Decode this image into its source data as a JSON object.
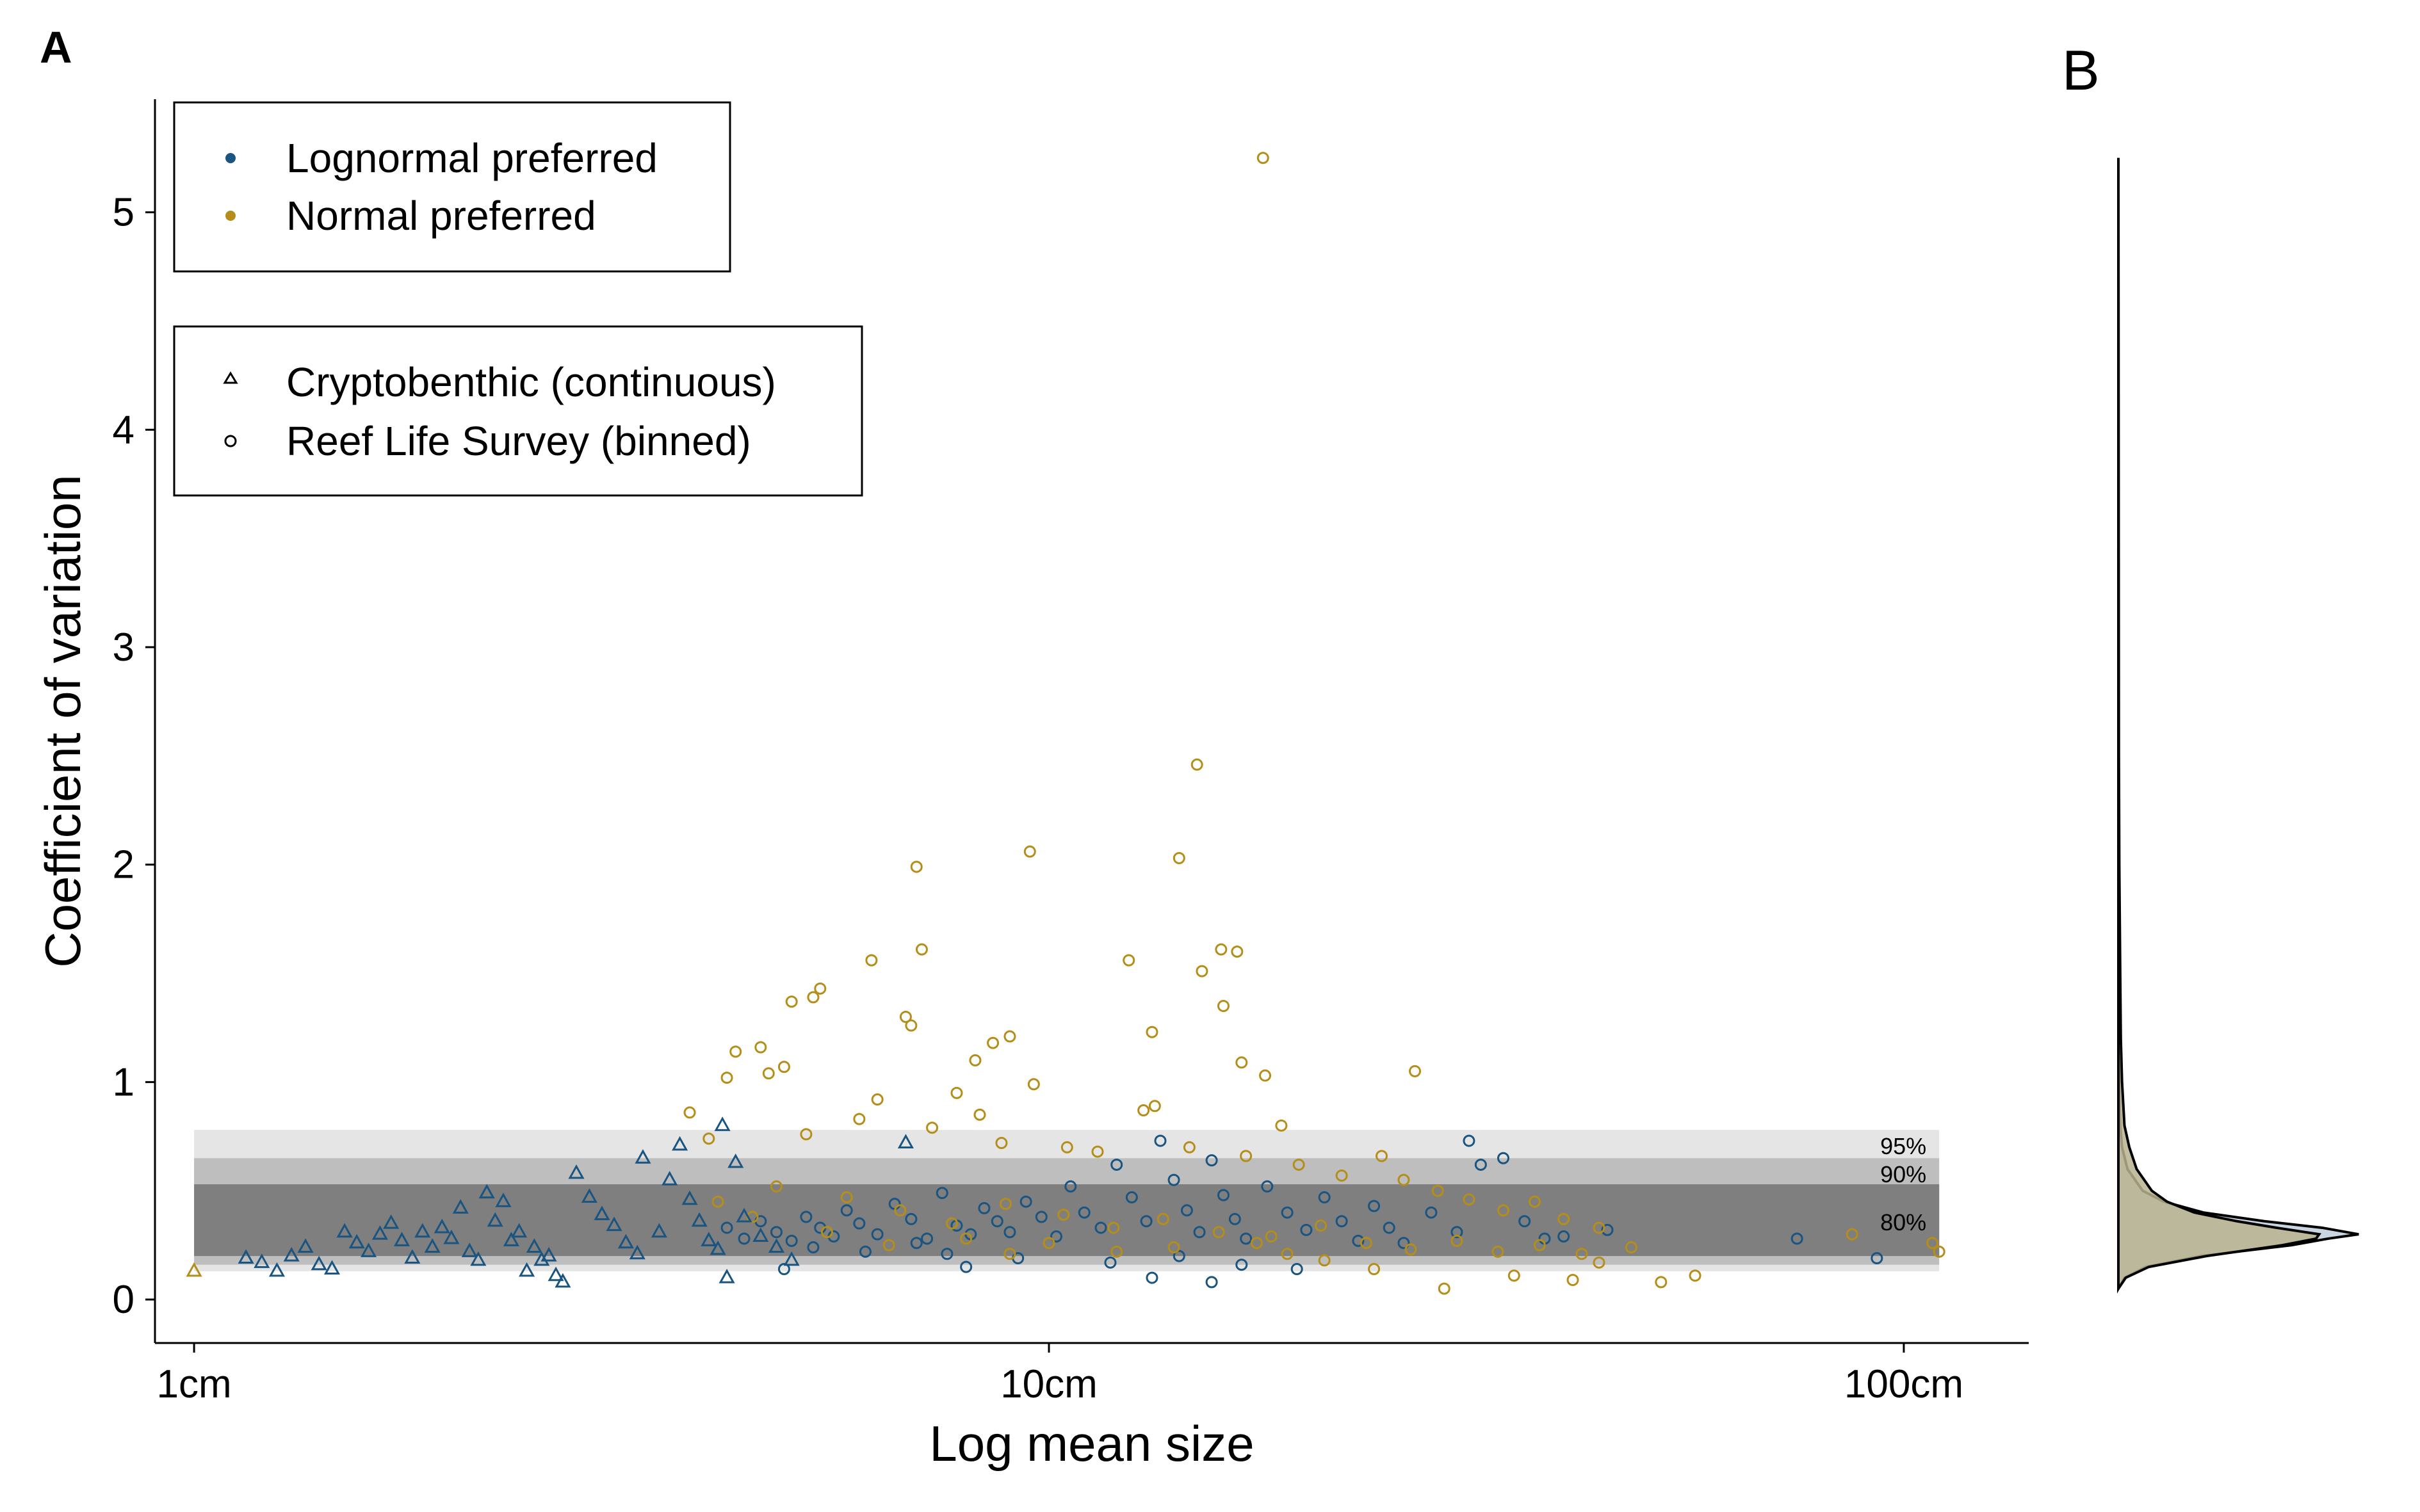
{
  "panel_labels": {
    "a": "A",
    "b": "B"
  },
  "colors": {
    "lognormal": "#1a5480",
    "normal": "#b58e1a",
    "band_95": "#e5e5e5",
    "band_90": "#bebebe",
    "band_80": "#7f7f7f",
    "density_lognormal_fill": "#c3d0de",
    "density_normal_fill": "#b9b38f"
  },
  "legend_color": {
    "items": [
      {
        "label": "Lognormal preferred",
        "marker": "filled-dot",
        "color": "#1a5480"
      },
      {
        "label": "Normal preferred",
        "marker": "filled-dot",
        "color": "#b58e1a"
      }
    ]
  },
  "legend_shape": {
    "items": [
      {
        "label": "Cryptobenthic (continuous)",
        "marker": "open-triangle"
      },
      {
        "label": "Reef Life Survey (binned)",
        "marker": "open-circle"
      }
    ]
  },
  "chart_data": [
    {
      "panel": "A",
      "type": "scatter",
      "xlabel": "Log mean size",
      "ylabel": "Coefficient of variation",
      "x_scale": "log10",
      "x_unit": "cm",
      "xlim": [
        0.9,
        140
      ],
      "ylim": [
        -0.2,
        5.52
      ],
      "x_ticks": [
        1,
        10,
        100
      ],
      "x_tick_labels": [
        "1cm",
        "10cm",
        "100cm"
      ],
      "y_ticks": [
        0,
        1,
        2,
        3,
        4,
        5
      ],
      "y_tick_labels": [
        "0",
        "1",
        "2",
        "3",
        "4",
        "5"
      ],
      "grid": false,
      "bands": [
        {
          "label": "95%",
          "y_low": 0.13,
          "y_high": 0.78
        },
        {
          "label": "90%",
          "y_low": 0.16,
          "y_high": 0.65
        },
        {
          "label": "80%",
          "y_low": 0.2,
          "y_high": 0.53
        }
      ],
      "band_x_range": [
        1,
        110
      ],
      "series": [
        {
          "name": "Lognormal preferred",
          "marker": "open-circle",
          "group": "Reef Life Survey (binned)",
          "points": [
            [
              4.2,
              0.33
            ],
            [
              4.4,
              0.28
            ],
            [
              4.6,
              0.36
            ],
            [
              4.8,
              0.31
            ],
            [
              5.0,
              0.27
            ],
            [
              5.2,
              0.38
            ],
            [
              5.4,
              0.33
            ],
            [
              5.6,
              0.29
            ],
            [
              5.8,
              0.41
            ],
            [
              6.0,
              0.35
            ],
            [
              6.3,
              0.3
            ],
            [
              6.6,
              0.44
            ],
            [
              6.9,
              0.37
            ],
            [
              7.2,
              0.28
            ],
            [
              7.5,
              0.49
            ],
            [
              7.8,
              0.34
            ],
            [
              8.1,
              0.3
            ],
            [
              8.4,
              0.42
            ],
            [
              8.7,
              0.36
            ],
            [
              9.0,
              0.31
            ],
            [
              9.4,
              0.45
            ],
            [
              9.8,
              0.38
            ],
            [
              10.2,
              0.29
            ],
            [
              10.6,
              0.52
            ],
            [
              11.0,
              0.4
            ],
            [
              11.5,
              0.33
            ],
            [
              12.0,
              0.62
            ],
            [
              12.5,
              0.47
            ],
            [
              13.0,
              0.36
            ],
            [
              13.5,
              0.73
            ],
            [
              14.0,
              0.55
            ],
            [
              14.5,
              0.41
            ],
            [
              15.0,
              0.31
            ],
            [
              15.5,
              0.64
            ],
            [
              16.0,
              0.48
            ],
            [
              16.5,
              0.37
            ],
            [
              17.0,
              0.28
            ],
            [
              18.0,
              0.52
            ],
            [
              19.0,
              0.4
            ],
            [
              20.0,
              0.32
            ],
            [
              21.0,
              0.47
            ],
            [
              22.0,
              0.36
            ],
            [
              23.0,
              0.27
            ],
            [
              24.0,
              0.43
            ],
            [
              25.0,
              0.33
            ],
            [
              26.0,
              0.26
            ],
            [
              28.0,
              0.4
            ],
            [
              30.0,
              0.31
            ],
            [
              31.0,
              0.73
            ],
            [
              32.0,
              0.62
            ],
            [
              34.0,
              0.65
            ],
            [
              36.0,
              0.36
            ],
            [
              38.0,
              0.28
            ],
            [
              40.0,
              0.29
            ],
            [
              45.0,
              0.32
            ],
            [
              75.0,
              0.28
            ],
            [
              93.0,
              0.19
            ],
            [
              13.2,
              0.1
            ],
            [
              15.5,
              0.08
            ],
            [
              4.9,
              0.14
            ],
            [
              8.0,
              0.15
            ],
            [
              9.2,
              0.19
            ],
            [
              11.8,
              0.17
            ],
            [
              14.2,
              0.2
            ],
            [
              16.8,
              0.16
            ],
            [
              19.5,
              0.14
            ],
            [
              5.3,
              0.24
            ],
            [
              6.1,
              0.22
            ],
            [
              7.0,
              0.26
            ],
            [
              7.6,
              0.21
            ]
          ]
        },
        {
          "name": "Normal preferred",
          "marker": "open-circle",
          "group": "Reef Life Survey (binned)",
          "points": [
            [
              17.8,
              5.25
            ],
            [
              14.9,
              2.46
            ],
            [
              14.2,
              2.03
            ],
            [
              9.5,
              2.06
            ],
            [
              7.0,
              1.99
            ],
            [
              6.2,
              1.56
            ],
            [
              7.1,
              1.61
            ],
            [
              15.9,
              1.61
            ],
            [
              16.6,
              1.6
            ],
            [
              12.4,
              1.56
            ],
            [
              15.1,
              1.51
            ],
            [
              16.0,
              1.35
            ],
            [
              5.4,
              1.43
            ],
            [
              5.3,
              1.39
            ],
            [
              5.0,
              1.37
            ],
            [
              6.8,
              1.3
            ],
            [
              6.9,
              1.26
            ],
            [
              13.2,
              1.23
            ],
            [
              9.0,
              1.21
            ],
            [
              8.6,
              1.18
            ],
            [
              4.6,
              1.16
            ],
            [
              4.3,
              1.14
            ],
            [
              16.8,
              1.09
            ],
            [
              4.9,
              1.07
            ],
            [
              4.7,
              1.04
            ],
            [
              8.2,
              1.1
            ],
            [
              26.8,
              1.05
            ],
            [
              17.9,
              1.03
            ],
            [
              4.2,
              1.02
            ],
            [
              7.8,
              0.95
            ],
            [
              9.6,
              0.99
            ],
            [
              12.9,
              0.87
            ],
            [
              13.3,
              0.89
            ],
            [
              8.3,
              0.85
            ],
            [
              6.3,
              0.92
            ],
            [
              18.7,
              0.8
            ],
            [
              3.8,
              0.86
            ],
            [
              4.0,
              0.74
            ],
            [
              5.2,
              0.76
            ],
            [
              6.0,
              0.83
            ],
            [
              7.3,
              0.79
            ],
            [
              8.8,
              0.72
            ],
            [
              10.5,
              0.7
            ],
            [
              11.4,
              0.68
            ],
            [
              14.6,
              0.7
            ],
            [
              17.0,
              0.66
            ],
            [
              19.6,
              0.62
            ],
            [
              22.0,
              0.57
            ],
            [
              24.5,
              0.66
            ],
            [
              26.0,
              0.55
            ],
            [
              28.5,
              0.5
            ],
            [
              31.0,
              0.46
            ],
            [
              34.0,
              0.41
            ],
            [
              37.0,
              0.45
            ],
            [
              40.0,
              0.37
            ],
            [
              44.0,
              0.33
            ],
            [
              48.0,
              0.24
            ],
            [
              52.0,
              0.08
            ],
            [
              57.0,
              0.11
            ],
            [
              44.0,
              0.17
            ],
            [
              41.0,
              0.09
            ],
            [
              35.0,
              0.11
            ],
            [
              29.0,
              0.05
            ],
            [
              24.0,
              0.14
            ],
            [
              21.0,
              0.18
            ],
            [
              19.0,
              0.21
            ],
            [
              17.5,
              0.26
            ],
            [
              14.0,
              0.24
            ],
            [
              12.0,
              0.22
            ],
            [
              10.0,
              0.26
            ],
            [
              9.0,
              0.21
            ],
            [
              8.0,
              0.28
            ],
            [
              6.5,
              0.25
            ],
            [
              5.5,
              0.31
            ],
            [
              4.5,
              0.38
            ],
            [
              4.1,
              0.45
            ],
            [
              4.8,
              0.52
            ],
            [
              5.8,
              0.47
            ],
            [
              6.7,
              0.41
            ],
            [
              7.7,
              0.35
            ],
            [
              8.9,
              0.44
            ],
            [
              10.4,
              0.39
            ],
            [
              11.9,
              0.33
            ],
            [
              13.6,
              0.37
            ],
            [
              15.8,
              0.31
            ],
            [
              18.2,
              0.29
            ],
            [
              20.8,
              0.34
            ],
            [
              23.5,
              0.26
            ],
            [
              26.5,
              0.23
            ],
            [
              30.0,
              0.27
            ],
            [
              33.5,
              0.22
            ],
            [
              37.5,
              0.25
            ],
            [
              42.0,
              0.21
            ],
            [
              87.0,
              0.3
            ],
            [
              108.0,
              0.26
            ],
            [
              110.0,
              0.22
            ]
          ]
        },
        {
          "name": "Lognormal preferred",
          "marker": "open-triangle",
          "group": "Cryptobenthic (continuous)",
          "points": [
            [
              1.15,
              0.19
            ],
            [
              1.2,
              0.17
            ],
            [
              1.25,
              0.13
            ],
            [
              1.3,
              0.2
            ],
            [
              1.35,
              0.24
            ],
            [
              1.4,
              0.16
            ],
            [
              1.45,
              0.14
            ],
            [
              1.5,
              0.31
            ],
            [
              1.55,
              0.26
            ],
            [
              1.6,
              0.22
            ],
            [
              1.65,
              0.3
            ],
            [
              1.7,
              0.35
            ],
            [
              1.75,
              0.27
            ],
            [
              1.8,
              0.19
            ],
            [
              1.85,
              0.31
            ],
            [
              1.9,
              0.24
            ],
            [
              1.95,
              0.33
            ],
            [
              2.0,
              0.28
            ],
            [
              2.05,
              0.42
            ],
            [
              2.1,
              0.22
            ],
            [
              2.15,
              0.18
            ],
            [
              2.2,
              0.49
            ],
            [
              2.25,
              0.36
            ],
            [
              2.3,
              0.45
            ],
            [
              2.35,
              0.27
            ],
            [
              2.4,
              0.31
            ],
            [
              2.45,
              0.13
            ],
            [
              2.5,
              0.24
            ],
            [
              2.55,
              0.18
            ],
            [
              2.6,
              0.2
            ],
            [
              2.65,
              0.11
            ],
            [
              2.7,
              0.08
            ],
            [
              2.8,
              0.58
            ],
            [
              2.9,
              0.47
            ],
            [
              3.0,
              0.39
            ],
            [
              3.1,
              0.34
            ],
            [
              3.2,
              0.26
            ],
            [
              3.3,
              0.21
            ],
            [
              3.35,
              0.65
            ],
            [
              3.5,
              0.31
            ],
            [
              3.6,
              0.55
            ],
            [
              3.7,
              0.71
            ],
            [
              3.8,
              0.46
            ],
            [
              3.9,
              0.36
            ],
            [
              4.0,
              0.27
            ],
            [
              4.1,
              0.23
            ],
            [
              4.15,
              0.8
            ],
            [
              4.2,
              0.1
            ],
            [
              4.3,
              0.63
            ],
            [
              4.4,
              0.38
            ],
            [
              4.6,
              0.29
            ],
            [
              4.8,
              0.24
            ],
            [
              5.0,
              0.18
            ],
            [
              6.8,
              0.72
            ]
          ]
        },
        {
          "name": "Normal preferred",
          "marker": "open-triangle",
          "group": "Cryptobenthic (continuous)",
          "points": [
            [
              1.0,
              0.13
            ]
          ]
        }
      ]
    },
    {
      "panel": "B",
      "type": "area",
      "orientation": "horizontal density",
      "shares_y_axis_with": "A",
      "series": [
        {
          "name": "Lognormal preferred",
          "y": [
            0.05,
            0.1,
            0.15,
            0.2,
            0.25,
            0.28,
            0.3,
            0.33,
            0.36,
            0.4,
            0.45,
            0.5,
            0.6,
            0.7,
            0.8,
            1.0,
            1.2,
            1.5,
            2.0,
            2.5,
            5.25
          ],
          "density": [
            0.0,
            0.1,
            0.45,
            1.35,
            2.85,
            3.45,
            3.95,
            3.35,
            2.4,
            1.4,
            0.75,
            0.4,
            0.15,
            0.06,
            0.03,
            0.015,
            0.01,
            0.008,
            0.005,
            0.003,
            0.0
          ]
        },
        {
          "name": "Normal preferred",
          "y": [
            0.05,
            0.1,
            0.15,
            0.2,
            0.25,
            0.28,
            0.3,
            0.33,
            0.36,
            0.4,
            0.45,
            0.5,
            0.6,
            0.7,
            0.8,
            1.0,
            1.2,
            1.5,
            2.0,
            2.5,
            5.25
          ],
          "density": [
            0.0,
            0.12,
            0.5,
            1.45,
            2.7,
            3.25,
            3.3,
            2.6,
            1.95,
            1.25,
            0.8,
            0.55,
            0.3,
            0.18,
            0.1,
            0.06,
            0.04,
            0.03,
            0.015,
            0.008,
            0.0
          ]
        }
      ]
    }
  ]
}
